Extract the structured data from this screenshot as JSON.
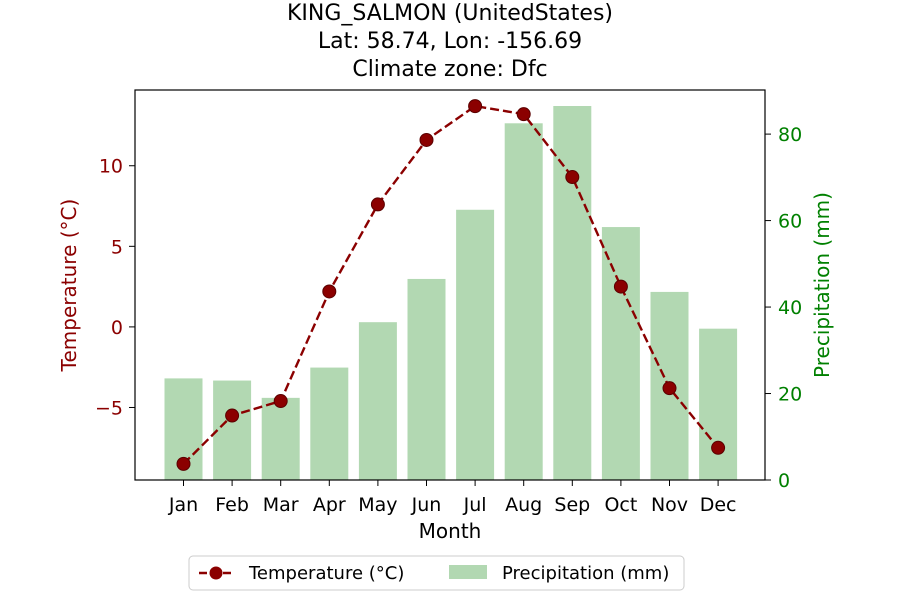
{
  "chart_data": {
    "type": "bar+line",
    "title_lines": [
      "KING_SALMON (UnitedStates)",
      "Lat: 58.74, Lon: -156.69",
      "Climate zone: Dfc"
    ],
    "xlabel": "Month",
    "categories": [
      "Jan",
      "Feb",
      "Mar",
      "Apr",
      "May",
      "Jun",
      "Jul",
      "Aug",
      "Sep",
      "Oct",
      "Nov",
      "Dec"
    ],
    "series": [
      {
        "name": "Temperature (°C)",
        "kind": "line",
        "axis": "left",
        "color": "#8b0000",
        "values": [
          -8.5,
          -5.5,
          -4.6,
          2.2,
          7.6,
          11.6,
          13.7,
          13.2,
          9.3,
          2.5,
          -3.8,
          -7.5
        ]
      },
      {
        "name": "Precipitation (mm)",
        "kind": "bar",
        "axis": "right",
        "color": "#b2d8b2",
        "values": [
          23.5,
          23.0,
          19.0,
          26.0,
          36.5,
          46.5,
          62.5,
          82.5,
          86.5,
          58.5,
          43.5,
          35.0
        ]
      }
    ],
    "y_left": {
      "label": "Temperature (°C)",
      "ticks": [
        -5,
        0,
        5,
        10
      ],
      "tick_labels": [
        "−5",
        "0",
        "5",
        "10"
      ],
      "range": [
        -9.5,
        14.7
      ],
      "color": "#8b0000"
    },
    "y_right": {
      "label": "Precipitation (mm)",
      "ticks": [
        0,
        20,
        40,
        60,
        80
      ],
      "tick_labels": [
        "0",
        "20",
        "40",
        "60",
        "80"
      ],
      "range": [
        0,
        90.2
      ],
      "color": "#008000"
    },
    "grid": false,
    "legend": {
      "placement": "bottom-center",
      "entries": [
        "Temperature (°C)",
        "Precipitation (mm)"
      ]
    }
  }
}
